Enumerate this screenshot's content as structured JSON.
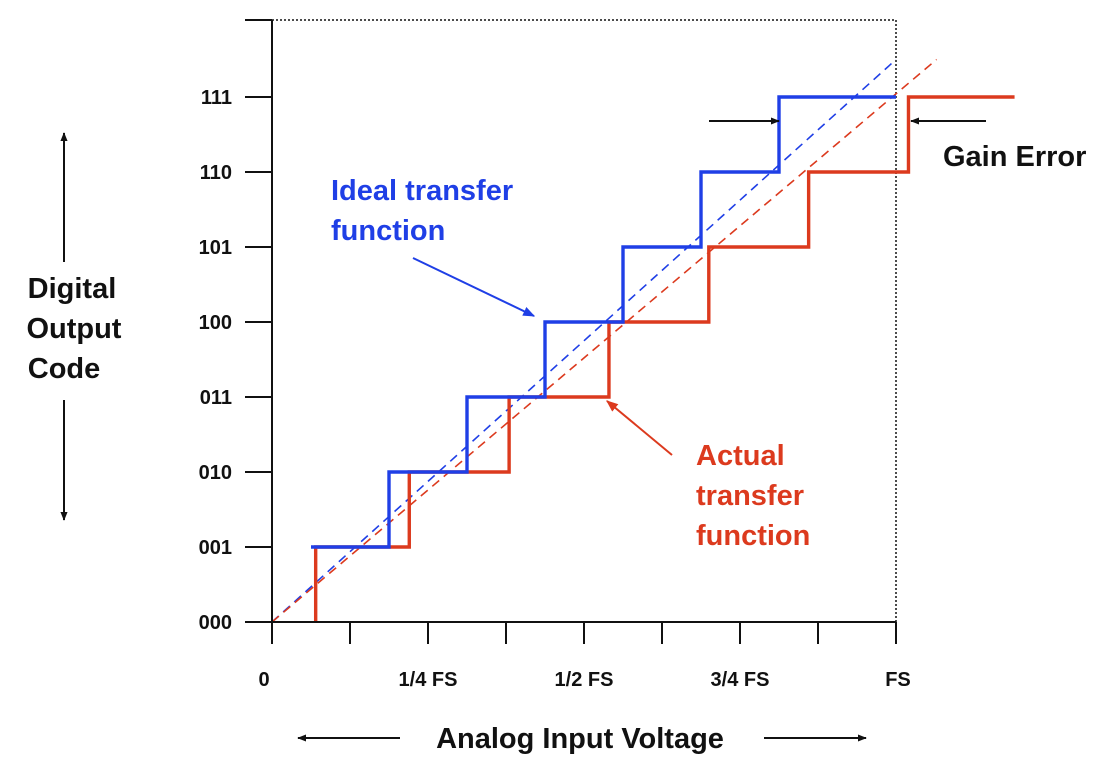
{
  "colors": {
    "ideal": "#1f3fe6",
    "actual": "#dc3a1e",
    "axis": "#111111"
  },
  "y_axis": {
    "title_lines": [
      "Digital",
      "Output",
      "Code"
    ],
    "codes": [
      "000",
      "001",
      "010",
      "011",
      "100",
      "101",
      "110",
      "111"
    ]
  },
  "x_axis": {
    "title": "Analog Input Voltage",
    "tick_labels": [
      {
        "label": "0",
        "fs": 0
      },
      {
        "label": "1/4 FS",
        "fs": 0.25
      },
      {
        "label": "1/2 FS",
        "fs": 0.5
      },
      {
        "label": "3/4 FS",
        "fs": 0.75
      },
      {
        "label": "FS",
        "fs": 1.0
      }
    ],
    "minor_ticks_fs": [
      0,
      0.125,
      0.25,
      0.375,
      0.5,
      0.625,
      0.75,
      0.875,
      1.0
    ]
  },
  "annotations": {
    "ideal_lines": [
      "Ideal transfer",
      "function"
    ],
    "actual_lines": [
      "Actual",
      "transfer",
      "function"
    ],
    "gain_error": "Gain Error"
  },
  "chart_data": {
    "type": "line",
    "xlabel": "Analog Input Voltage",
    "ylabel": "Digital Output Code",
    "xlim": [
      0,
      1.0
    ],
    "ylim": [
      0,
      7
    ],
    "series": [
      {
        "name": "Ideal transfer function",
        "step_thresholds_fs": [
          0.0625,
          0.1875,
          0.3125,
          0.4375,
          0.5625,
          0.6875,
          0.8125
        ],
        "ideal_line": [
          [
            0,
            0
          ],
          [
            1.0,
            7.5
          ]
        ]
      },
      {
        "name": "Actual transfer function",
        "step_thresholds_fs": [
          0.07,
          0.22,
          0.38,
          0.54,
          0.7,
          0.86,
          1.02
        ],
        "actual_line": [
          [
            0,
            0
          ],
          [
            1.065,
            7.5
          ]
        ],
        "x_end_fs": 1.19
      }
    ]
  }
}
